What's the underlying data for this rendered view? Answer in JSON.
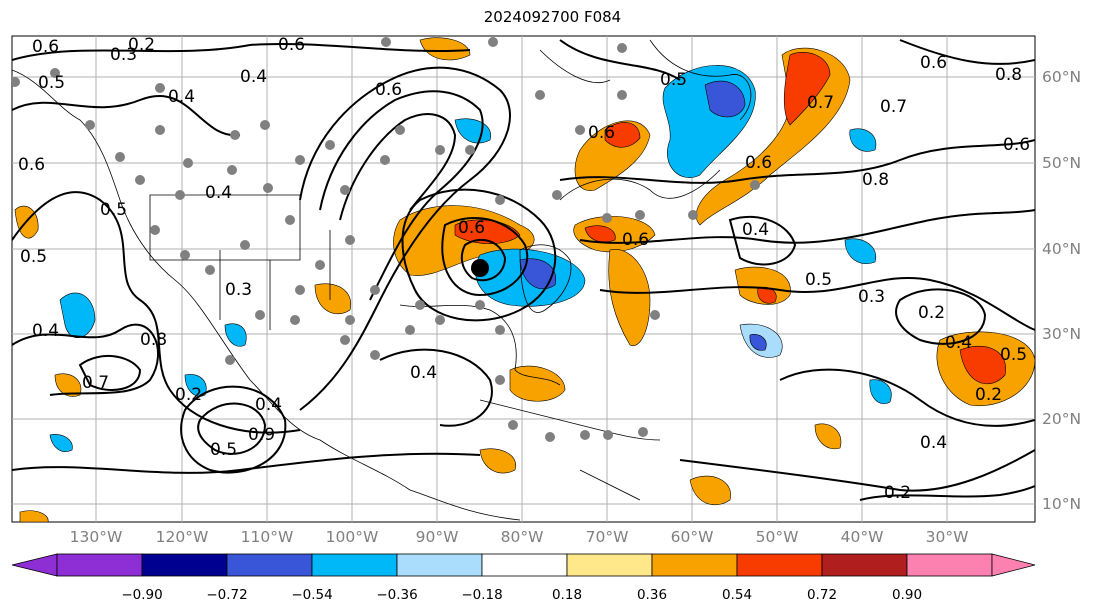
{
  "title": "2024092700 F084",
  "lon_labels": [
    "130°W",
    "120°W",
    "110°W",
    "100°W",
    "90°W",
    "80°W",
    "70°W",
    "60°W",
    "50°W",
    "40°W",
    "30°W"
  ],
  "lat_labels": [
    "60°N",
    "50°N",
    "40°N",
    "30°N",
    "20°N",
    "10°N"
  ],
  "colorbar": {
    "labels": [
      "−0.90",
      "−0.72",
      "−0.54",
      "−0.36",
      "−0.18",
      "0.18",
      "0.36",
      "0.54",
      "0.72",
      "0.90"
    ],
    "colors": [
      "#8e2fd6",
      "#2e2ea0",
      "#000090",
      "#3a56d8",
      "#00b8f8",
      "#aadcfc",
      "#ffffff",
      "#ffe88a",
      "#f8a200",
      "#f83c00",
      "#b01e1e",
      "#fc80b0"
    ]
  },
  "contour_labels": [
    "0.6",
    "0.3",
    "0.2",
    "0.6",
    "0.5",
    "0.4",
    "0.6",
    "0.4",
    "0.6",
    "0.6",
    "0.7",
    "0.6",
    "0.8",
    "0.7",
    "0.6",
    "0.8",
    "0.5",
    "0.4",
    "0.5",
    "0.6",
    "0.4",
    "0.3",
    "0.4",
    "0.2",
    "0.5",
    "0.2",
    "0.4",
    "0.2",
    "0.7",
    "0.9",
    "0.8",
    "0.5",
    "0.4",
    "0.4",
    "0.3",
    "0.6",
    "0.5",
    "0.6",
    "0.4",
    "0.2",
    "0.5"
  ],
  "colors": {
    "gridline": "#b0b0b0",
    "contour": "#000000",
    "fill_blue": "#00b8f8",
    "fill_darkblue": "#3a56d8",
    "fill_orange": "#f8a200",
    "fill_red": "#f83c00"
  }
}
